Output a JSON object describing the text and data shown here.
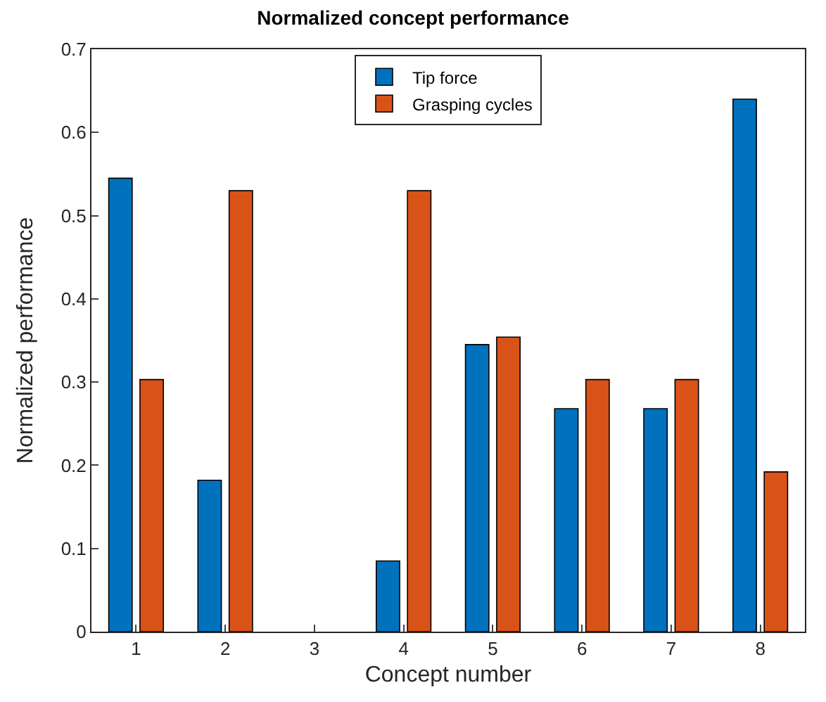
{
  "chart_data": {
    "type": "bar",
    "title": "Normalized concept performance",
    "xlabel": "Concept number",
    "ylabel": "Normalized performance",
    "categories": [
      "1",
      "2",
      "3",
      "4",
      "5",
      "6",
      "7",
      "8"
    ],
    "series": [
      {
        "name": "Tip force",
        "color": "#0072bd",
        "values": [
          0.545,
          0.182,
          0,
          0.085,
          0.345,
          0.268,
          0.268,
          0.64
        ]
      },
      {
        "name": "Grasping cycles",
        "color": "#d95319",
        "values": [
          0.303,
          0.53,
          0,
          0.53,
          0.354,
          0.303,
          0.303,
          0.192
        ]
      }
    ],
    "ylim": [
      0,
      0.7
    ],
    "yticks": [
      0,
      0.1,
      0.2,
      0.3,
      0.4,
      0.5,
      0.6,
      0.7
    ],
    "legend": "top"
  }
}
